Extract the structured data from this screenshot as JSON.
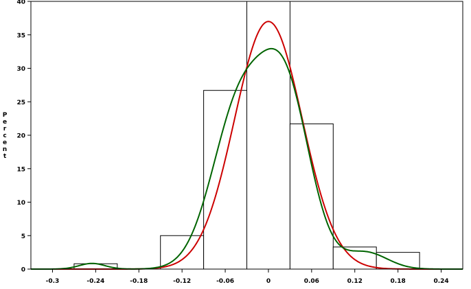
{
  "chart_data": {
    "type": "bar",
    "subtype": "histogram-with-density-curves",
    "title": "",
    "xlabel": "",
    "ylabel": "Percent",
    "xlim": [
      -0.33,
      0.27
    ],
    "ylim": [
      0,
      40
    ],
    "grid": false,
    "legend": "none",
    "x_ticks": [
      -0.3,
      -0.24,
      -0.18,
      -0.12,
      -0.06,
      0,
      0.06,
      0.12,
      0.18,
      0.24
    ],
    "x_tick_labels": [
      "-0.3",
      "-0.24",
      "-0.18",
      "-0.12",
      "-0.06",
      "0",
      "0.06",
      "0.12",
      "0.18",
      "0.24"
    ],
    "y_ticks": [
      0,
      5,
      10,
      15,
      20,
      25,
      30,
      35,
      40
    ],
    "y_tick_labels": [
      "0",
      "5",
      "10",
      "15",
      "20",
      "25",
      "30",
      "35",
      "40"
    ],
    "bins": [
      {
        "x0": -0.27,
        "x1": -0.21,
        "value": 0.8
      },
      {
        "x0": -0.21,
        "x1": -0.15,
        "value": 0
      },
      {
        "x0": -0.15,
        "x1": -0.09,
        "value": 5.0
      },
      {
        "x0": -0.09,
        "x1": -0.03,
        "value": 26.7
      },
      {
        "x0": -0.03,
        "x1": 0.03,
        "value": 40.0
      },
      {
        "x0": 0.03,
        "x1": 0.09,
        "value": 21.7
      },
      {
        "x0": 0.09,
        "x1": 0.15,
        "value": 3.3
      },
      {
        "x0": 0.15,
        "x1": 0.21,
        "value": 2.5
      }
    ],
    "curves": [
      {
        "kind": "normal",
        "color": "#cc0000",
        "mean": 0.0,
        "peak": 37.0,
        "sd": 0.047
      },
      {
        "kind": "kernel",
        "color": "#006400",
        "components": [
          {
            "mean": -0.04,
            "peak": 24.0,
            "sd": 0.038
          },
          {
            "mean": 0.025,
            "peak": 25.0,
            "sd": 0.034
          },
          {
            "mean": 0.135,
            "peak": 2.5,
            "sd": 0.03
          },
          {
            "mean": -0.245,
            "peak": 0.85,
            "sd": 0.018
          }
        ]
      }
    ]
  }
}
